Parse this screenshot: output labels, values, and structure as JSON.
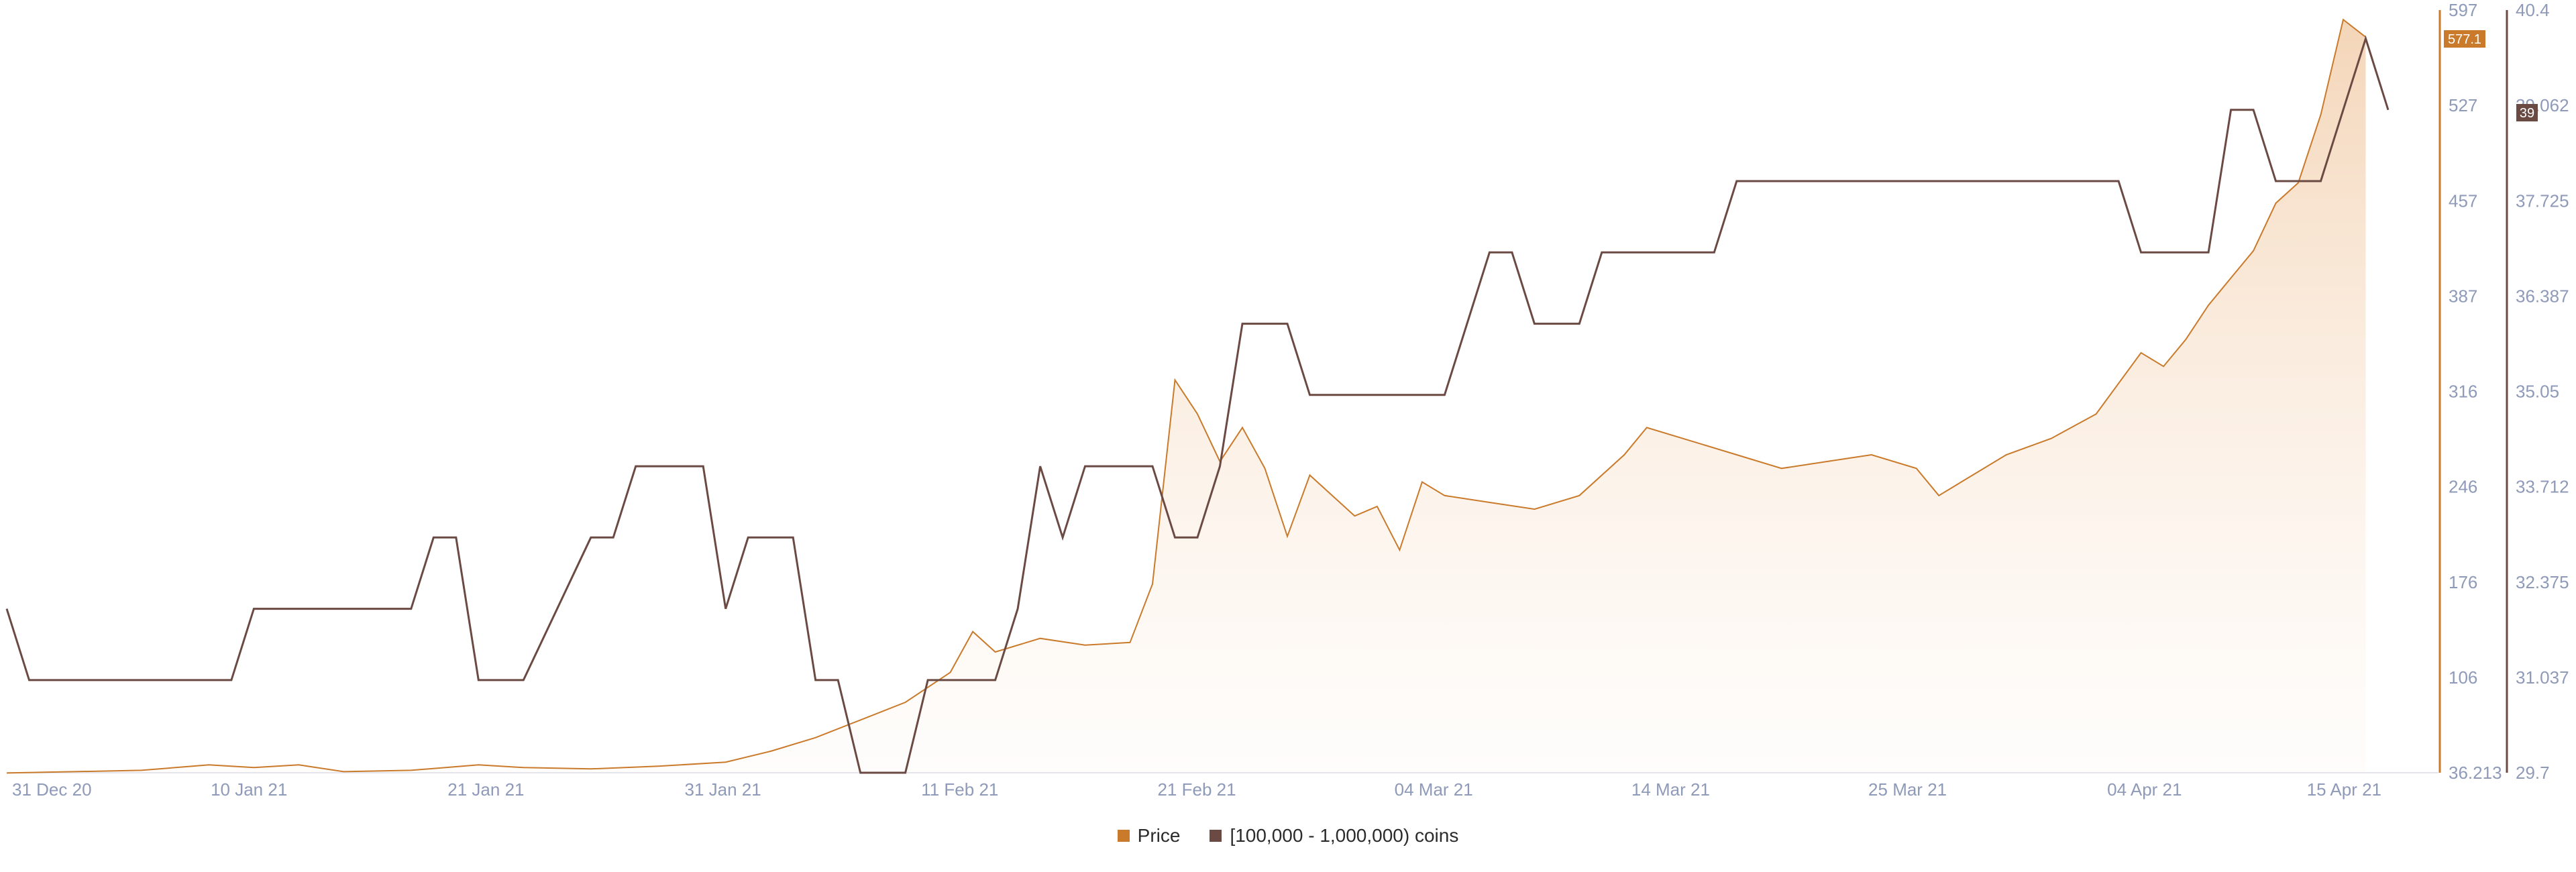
{
  "chart_data": {
    "type": "line",
    "title": "",
    "x_tick_labels": [
      "31 Dec 20",
      "10 Jan 21",
      "21 Jan 21",
      "31 Jan 21",
      "11 Feb 21",
      "21 Feb 21",
      "04 Mar 21",
      "14 Mar 21",
      "25 Mar 21",
      "04 Apr 21",
      "15 Apr 21"
    ],
    "left_axis": {
      "ticks": [
        "597",
        "527",
        "457",
        "387",
        "316",
        "246",
        "176",
        "106",
        "36.213"
      ],
      "range": [
        36.213,
        597
      ]
    },
    "right_axis": {
      "ticks": [
        "40.4",
        "39.062",
        "37.725",
        "36.387",
        "35.05",
        "33.712",
        "32.375",
        "31.037",
        "29.7"
      ],
      "range": [
        29.7,
        40.4
      ]
    },
    "legend_position": "bottom-center",
    "grid": false,
    "series": [
      {
        "name": "Price",
        "axis": "left",
        "color": "#c97a2a",
        "last_value_label": "577.1",
        "points": [
          [
            "2020-12-30",
            36
          ],
          [
            "2021-01-02",
            37
          ],
          [
            "2021-01-05",
            38
          ],
          [
            "2021-01-08",
            42
          ],
          [
            "2021-01-10",
            40
          ],
          [
            "2021-01-12",
            42
          ],
          [
            "2021-01-14",
            37
          ],
          [
            "2021-01-17",
            38
          ],
          [
            "2021-01-20",
            42
          ],
          [
            "2021-01-22",
            40
          ],
          [
            "2021-01-25",
            39
          ],
          [
            "2021-01-28",
            41
          ],
          [
            "2021-01-31",
            44
          ],
          [
            "2021-02-02",
            52
          ],
          [
            "2021-02-04",
            62
          ],
          [
            "2021-02-06",
            75
          ],
          [
            "2021-02-08",
            88
          ],
          [
            "2021-02-10",
            110
          ],
          [
            "2021-02-11",
            140
          ],
          [
            "2021-02-12",
            125
          ],
          [
            "2021-02-14",
            135
          ],
          [
            "2021-02-16",
            130
          ],
          [
            "2021-02-18",
            132
          ],
          [
            "2021-02-19",
            175
          ],
          [
            "2021-02-20",
            325
          ],
          [
            "2021-02-21",
            300
          ],
          [
            "2021-02-22",
            265
          ],
          [
            "2021-02-23",
            290
          ],
          [
            "2021-02-24",
            260
          ],
          [
            "2021-02-25",
            210
          ],
          [
            "2021-02-26",
            255
          ],
          [
            "2021-02-27",
            240
          ],
          [
            "2021-02-28",
            225
          ],
          [
            "2021-03-01",
            232
          ],
          [
            "2021-03-02",
            200
          ],
          [
            "2021-03-03",
            250
          ],
          [
            "2021-03-04",
            240
          ],
          [
            "2021-03-06",
            235
          ],
          [
            "2021-03-08",
            230
          ],
          [
            "2021-03-10",
            240
          ],
          [
            "2021-03-12",
            270
          ],
          [
            "2021-03-13",
            290
          ],
          [
            "2021-03-15",
            280
          ],
          [
            "2021-03-17",
            270
          ],
          [
            "2021-03-19",
            260
          ],
          [
            "2021-03-21",
            265
          ],
          [
            "2021-03-23",
            270
          ],
          [
            "2021-03-25",
            260
          ],
          [
            "2021-03-26",
            240
          ],
          [
            "2021-03-27",
            250
          ],
          [
            "2021-03-29",
            270
          ],
          [
            "2021-03-31",
            282
          ],
          [
            "2021-04-02",
            300
          ],
          [
            "2021-04-04",
            345
          ],
          [
            "2021-04-05",
            335
          ],
          [
            "2021-04-06",
            355
          ],
          [
            "2021-04-07",
            380
          ],
          [
            "2021-04-08",
            400
          ],
          [
            "2021-04-09",
            420
          ],
          [
            "2021-04-10",
            455
          ],
          [
            "2021-04-11",
            470
          ],
          [
            "2021-04-12",
            520
          ],
          [
            "2021-04-13",
            590
          ],
          [
            "2021-04-14",
            577.1
          ]
        ]
      },
      {
        "name": "[100,000  - 1,000,000) coins",
        "axis": "right",
        "color": "#6b4a43",
        "last_value_label": "39",
        "points": [
          [
            "2020-12-30",
            32.0
          ],
          [
            "2020-12-31",
            31.0
          ],
          [
            "2021-01-09",
            31.0
          ],
          [
            "2021-01-10",
            32.0
          ],
          [
            "2021-01-17",
            32.0
          ],
          [
            "2021-01-18",
            33.0
          ],
          [
            "2021-01-19",
            33.0
          ],
          [
            "2021-01-20",
            31.0
          ],
          [
            "2021-01-22",
            31.0
          ],
          [
            "2021-01-25",
            33.0
          ],
          [
            "2021-01-26",
            33.0
          ],
          [
            "2021-01-27",
            34.0
          ],
          [
            "2021-01-30",
            34.0
          ],
          [
            "2021-01-31",
            32.0
          ],
          [
            "2021-02-01",
            33.0
          ],
          [
            "2021-02-03",
            33.0
          ],
          [
            "2021-02-04",
            31.0
          ],
          [
            "2021-02-05",
            31.0
          ],
          [
            "2021-02-06",
            29.7
          ],
          [
            "2021-02-08",
            29.7
          ],
          [
            "2021-02-09",
            31.0
          ],
          [
            "2021-02-12",
            31.0
          ],
          [
            "2021-02-13",
            32.0
          ],
          [
            "2021-02-14",
            34.0
          ],
          [
            "2021-02-15",
            33.0
          ],
          [
            "2021-02-16",
            34.0
          ],
          [
            "2021-02-19",
            34.0
          ],
          [
            "2021-02-20",
            33.0
          ],
          [
            "2021-02-21",
            33.0
          ],
          [
            "2021-02-22",
            34.0
          ],
          [
            "2021-02-23",
            36.0
          ],
          [
            "2021-02-25",
            36.0
          ],
          [
            "2021-02-26",
            35.0
          ],
          [
            "2021-03-04",
            35.0
          ],
          [
            "2021-03-06",
            37.0
          ],
          [
            "2021-03-07",
            37.0
          ],
          [
            "2021-03-08",
            36.0
          ],
          [
            "2021-03-10",
            36.0
          ],
          [
            "2021-03-11",
            37.0
          ],
          [
            "2021-03-16",
            37.0
          ],
          [
            "2021-03-17",
            38.0
          ],
          [
            "2021-04-03",
            38.0
          ],
          [
            "2021-04-04",
            37.0
          ],
          [
            "2021-04-07",
            37.0
          ],
          [
            "2021-04-08",
            39.0
          ],
          [
            "2021-04-09",
            39.0
          ],
          [
            "2021-04-10",
            38.0
          ],
          [
            "2021-04-12",
            38.0
          ],
          [
            "2021-04-14",
            40.0
          ],
          [
            "2021-04-15",
            39.0
          ]
        ]
      }
    ]
  }
}
